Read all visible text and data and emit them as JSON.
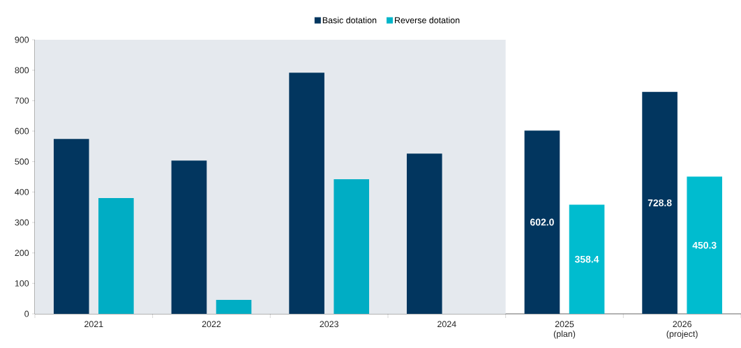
{
  "chart_data": {
    "type": "bar",
    "categories": [
      "2021",
      "2022",
      "2023",
      "2024",
      "2025 (plan)",
      "2026 (project)"
    ],
    "series": [
      {
        "name": "Basic dotation",
        "color": "#02365f",
        "values": [
          574,
          503,
          792,
          526,
          602.0,
          728.8
        ],
        "value_labels": [
          null,
          null,
          null,
          null,
          "602.0",
          "728.8"
        ]
      },
      {
        "name": "Reverse dotation",
        "color": "#00b5c9",
        "colors": [
          "#00adc4",
          "#00adc4",
          "#00adc4",
          "#00adc4",
          "#00bccf",
          "#00bccf"
        ],
        "values": [
          380,
          46,
          442,
          null,
          358.4,
          450.3
        ],
        "value_labels": [
          null,
          null,
          null,
          null,
          "358.4",
          "450.3"
        ]
      }
    ],
    "ylim": [
      0,
      900
    ],
    "yticks": [
      0,
      100,
      200,
      300,
      400,
      500,
      600,
      700,
      800,
      900
    ],
    "bands": [
      {
        "axis": "x",
        "from": "2021",
        "to": "2024",
        "color": "#e5e9ee"
      }
    ],
    "grid": false,
    "legend": "top"
  }
}
